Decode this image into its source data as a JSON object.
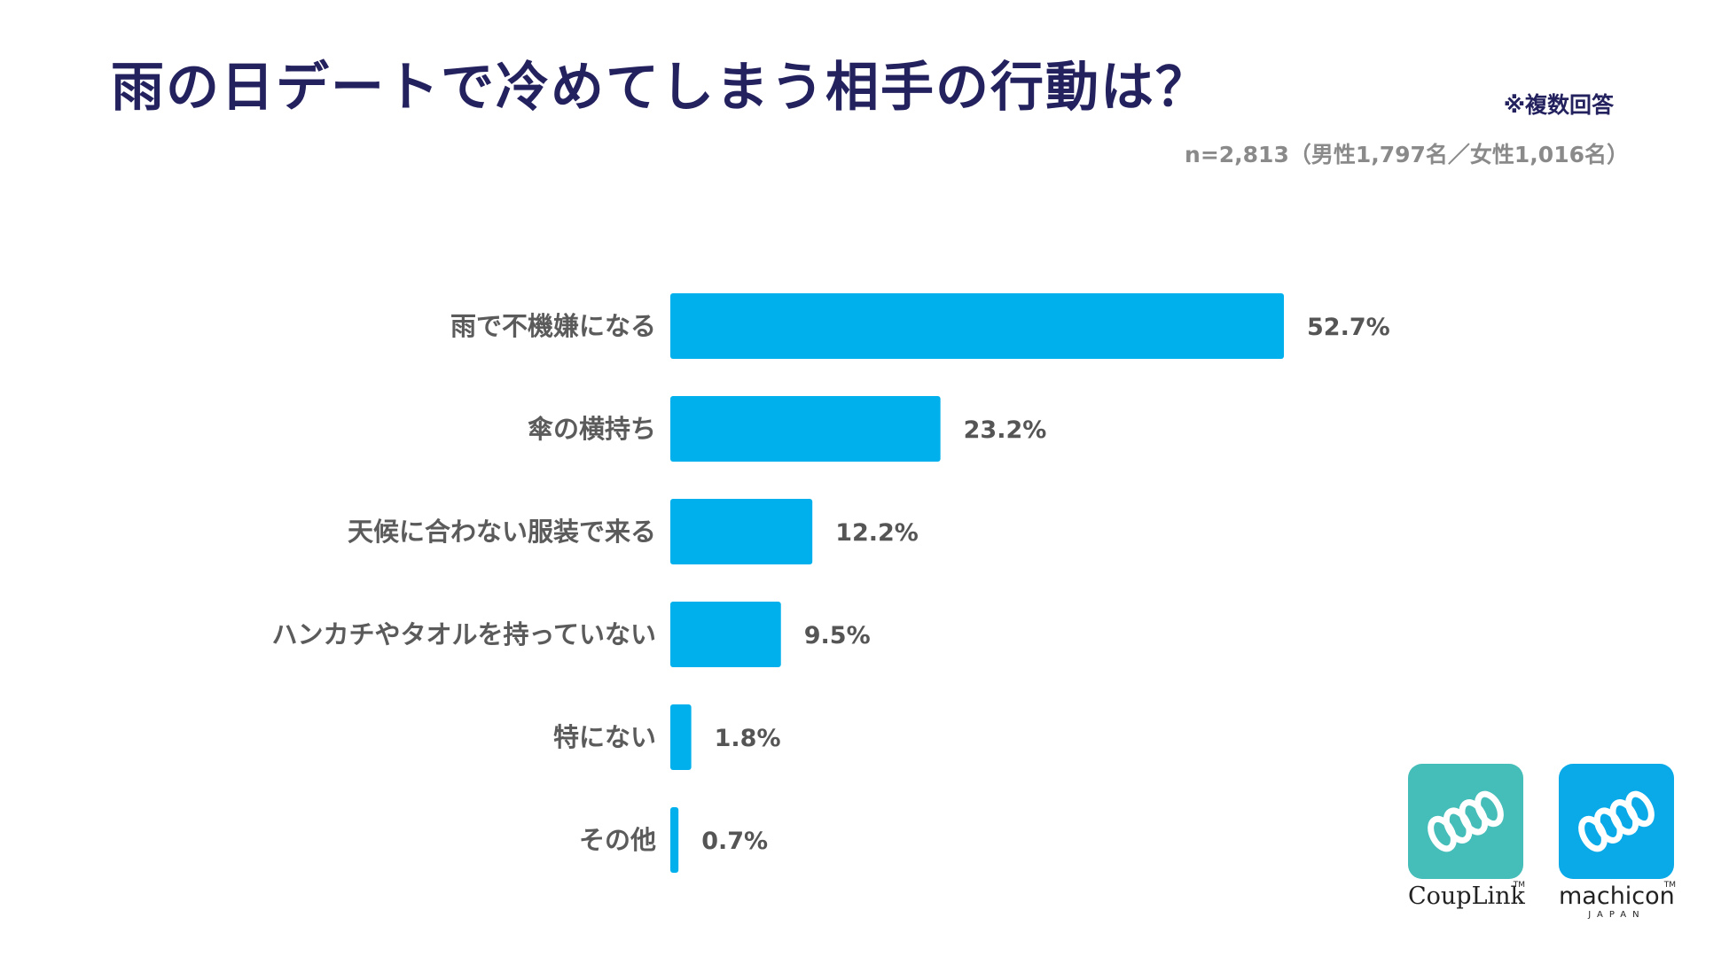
{
  "header": {
    "title": "雨の日デートで冷めてしまう相手の行動は？",
    "note": "※複数回答",
    "sample": "n=2,813（男性1,797名／女性1,016名）"
  },
  "chart_data": {
    "type": "bar",
    "orientation": "horizontal",
    "title": "雨の日デートで冷めてしまう相手の行動は？",
    "categories": [
      "雨で不機嫌になる",
      "傘の横持ち",
      "天候に合わない服装で来る",
      "ハンカチやタオルを持っていない",
      "特にない",
      "その他"
    ],
    "values": [
      52.7,
      23.2,
      12.2,
      9.5,
      1.8,
      0.7
    ],
    "value_labels": [
      "52.7%",
      "23.2%",
      "12.2%",
      "9.5%",
      "1.8%",
      "0.7%"
    ],
    "unit": "%",
    "xlim": [
      0,
      52.7
    ],
    "bar_color": "#00b0ec",
    "grid": false,
    "legend": "none"
  },
  "logos": {
    "couplink": {
      "name": "CoupLink",
      "tm": "TM",
      "color": "#45bdb8"
    },
    "machicon": {
      "name": "machicon",
      "sub": "JAPAN",
      "tm": "TM",
      "color": "#0aaae9"
    }
  }
}
